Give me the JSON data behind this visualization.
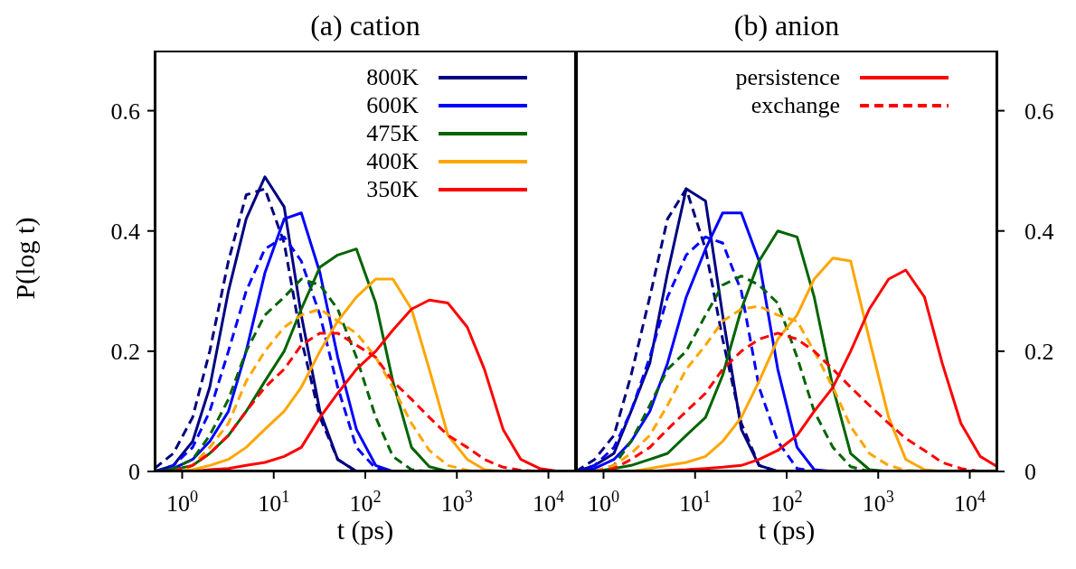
{
  "chart_data": [
    {
      "type": "line",
      "title": "(a) cation",
      "xlabel": "t (ps)",
      "ylabel": "P(log t)",
      "log": "x",
      "legend": "top right",
      "x": [
        0.5,
        0.8,
        1.3,
        2,
        3.2,
        5,
        8,
        13,
        20,
        32,
        50,
        80,
        130,
        200,
        320,
        500,
        800,
        1300,
        2000,
        3200,
        5000,
        8000,
        13000
      ],
      "xlim": [
        0.5,
        20000
      ],
      "xticks": [
        {
          "value": 1,
          "label": "10$^{0}$"
        },
        {
          "value": 10,
          "label": "10$^{1}$"
        },
        {
          "value": 100,
          "label": "10$^{2}$"
        },
        {
          "value": 1000,
          "label": "10$^{3}$"
        },
        {
          "value": 10000,
          "label": "10$^{4}$"
        }
      ],
      "ylim": [
        0,
        0.7
      ],
      "yticks": [
        0,
        0.2,
        0.4,
        0.6
      ],
      "series": [
        {
          "name": "800K",
          "color": "#000080",
          "line_style": "solid",
          "values": [
            0,
            0.01,
            0.05,
            0.14,
            0.3,
            0.42,
            0.49,
            0.44,
            0.26,
            0.1,
            0.02,
            0,
            null,
            null,
            null,
            null,
            null,
            null,
            null,
            null,
            null,
            null,
            null
          ]
        },
        {
          "color": "#000080",
          "line_style": "dashed",
          "values": [
            0.005,
            0.03,
            0.09,
            0.2,
            0.35,
            0.46,
            0.47,
            0.38,
            0.22,
            0.09,
            0.02,
            0,
            null,
            null,
            null,
            null,
            null,
            null,
            null,
            null,
            null,
            null,
            null
          ]
        },
        {
          "name": "600K",
          "color": "#0000ff",
          "line_style": "solid",
          "values": [
            0,
            0.005,
            0.02,
            0.05,
            0.1,
            0.2,
            0.33,
            0.42,
            0.43,
            0.33,
            0.19,
            0.07,
            0.01,
            0,
            null,
            null,
            null,
            null,
            null,
            null,
            null,
            null,
            null
          ]
        },
        {
          "color": "#0000ff",
          "line_style": "dashed",
          "values": [
            0,
            0.01,
            0.04,
            0.1,
            0.2,
            0.3,
            0.37,
            0.39,
            0.35,
            0.26,
            0.14,
            0.04,
            0.005,
            0,
            null,
            null,
            null,
            null,
            null,
            null,
            null,
            null,
            null
          ]
        },
        {
          "name": "475K",
          "color": "#006400",
          "line_style": "solid",
          "values": [
            0,
            0.003,
            0.01,
            0.03,
            0.06,
            0.1,
            0.15,
            0.2,
            0.27,
            0.34,
            0.36,
            0.37,
            0.28,
            0.15,
            0.04,
            0.008,
            0,
            null,
            null,
            null,
            null,
            null,
            null
          ]
        },
        {
          "color": "#006400",
          "line_style": "dashed",
          "values": [
            0,
            0.005,
            0.02,
            0.06,
            0.12,
            0.2,
            0.26,
            0.29,
            0.32,
            0.31,
            0.27,
            0.19,
            0.09,
            0.025,
            0.003,
            0,
            null,
            null,
            null,
            null,
            null,
            null,
            null
          ]
        },
        {
          "name": "400K",
          "color": "#ffa500",
          "line_style": "solid",
          "values": [
            null,
            0,
            0.003,
            0.01,
            0.02,
            0.04,
            0.07,
            0.1,
            0.14,
            0.2,
            0.25,
            0.29,
            0.32,
            0.32,
            0.27,
            0.17,
            0.06,
            0.02,
            0.003,
            0,
            null,
            null,
            null
          ]
        },
        {
          "color": "#ffa500",
          "line_style": "dashed",
          "values": [
            null,
            0,
            0.01,
            0.04,
            0.08,
            0.15,
            0.2,
            0.24,
            0.26,
            0.27,
            0.25,
            0.23,
            0.19,
            0.14,
            0.08,
            0.035,
            0.01,
            0.002,
            0,
            null,
            null,
            null,
            null
          ]
        },
        {
          "name": "350K",
          "color": "#ff0000",
          "line_style": "solid",
          "values": [
            null,
            null,
            0,
            0.003,
            0.005,
            0.01,
            0.015,
            0.025,
            0.04,
            0.09,
            0.13,
            0.17,
            0.2,
            0.235,
            0.27,
            0.285,
            0.28,
            0.24,
            0.17,
            0.07,
            0.02,
            0.005,
            0
          ]
        },
        {
          "color": "#ff0000",
          "line_style": "dashed",
          "values": [
            null,
            0,
            0.01,
            0.03,
            0.06,
            0.1,
            0.14,
            0.17,
            0.21,
            0.23,
            0.23,
            0.21,
            0.19,
            0.15,
            0.12,
            0.09,
            0.06,
            0.04,
            0.02,
            0.007,
            0.002,
            0,
            null
          ]
        }
      ]
    },
    {
      "type": "line",
      "title": "(b) anion",
      "xlabel": "t (ps)",
      "log": "x",
      "legend": "top right",
      "x": [
        0.5,
        0.8,
        1.3,
        2,
        3.2,
        5,
        8,
        13,
        20,
        32,
        50,
        80,
        130,
        200,
        320,
        500,
        800,
        1300,
        2000,
        3200,
        5000,
        8000,
        13000,
        20000
      ],
      "xlim": [
        0.5,
        20000
      ],
      "xticks": [
        {
          "value": 1,
          "label": "10$^{0}$"
        },
        {
          "value": 10,
          "label": "10$^{1}$"
        },
        {
          "value": 100,
          "label": "10$^{2}$"
        },
        {
          "value": 1000,
          "label": "10$^{3}$"
        },
        {
          "value": 10000,
          "label": "10$^{4}$"
        }
      ],
      "y2lim": [
        0,
        0.7
      ],
      "y2ticks": [
        0,
        0.2,
        0.4,
        0.6
      ],
      "series": [
        {
          "color": "#000080",
          "line_style": "solid",
          "axis": "y2",
          "values": [
            0,
            0.01,
            0.03,
            0.1,
            0.18,
            0.33,
            0.47,
            0.45,
            0.26,
            0.07,
            0.01,
            0,
            null,
            null,
            null,
            null,
            null,
            null,
            null,
            null,
            null,
            null,
            null,
            null
          ]
        },
        {
          "color": "#000080",
          "line_style": "dashed",
          "axis": "y2",
          "values": [
            0,
            0.02,
            0.06,
            0.16,
            0.29,
            0.42,
            0.47,
            0.37,
            0.22,
            0.08,
            0.01,
            0,
            null,
            null,
            null,
            null,
            null,
            null,
            null,
            null,
            null,
            null,
            null,
            null
          ]
        },
        {
          "color": "#0000ff",
          "line_style": "solid",
          "axis": "y2",
          "values": [
            0,
            0.005,
            0.02,
            0.05,
            0.1,
            0.18,
            0.29,
            0.37,
            0.43,
            0.43,
            0.35,
            0.17,
            0.04,
            0.003,
            0,
            null,
            null,
            null,
            null,
            null,
            null,
            null,
            null,
            null
          ]
        },
        {
          "color": "#0000ff",
          "line_style": "dashed",
          "axis": "y2",
          "values": [
            0,
            0.01,
            0.04,
            0.1,
            0.19,
            0.29,
            0.36,
            0.39,
            0.38,
            0.3,
            0.14,
            0.05,
            0.005,
            0,
            null,
            null,
            null,
            null,
            null,
            null,
            null,
            null,
            null,
            null
          ]
        },
        {
          "color": "#006400",
          "line_style": "solid",
          "axis": "y2",
          "values": [
            null,
            0,
            0.005,
            0.01,
            0.02,
            0.03,
            0.06,
            0.09,
            0.16,
            0.27,
            0.35,
            0.4,
            0.39,
            0.29,
            0.14,
            0.03,
            0.003,
            0,
            null,
            null,
            null,
            null,
            null,
            null
          ]
        },
        {
          "color": "#006400",
          "line_style": "dashed",
          "axis": "y2",
          "values": [
            null,
            0,
            0.01,
            0.05,
            0.11,
            0.17,
            0.2,
            0.26,
            0.31,
            0.325,
            0.31,
            0.28,
            0.19,
            0.1,
            0.04,
            0.008,
            0,
            null,
            null,
            null,
            null,
            null,
            null,
            null
          ]
        },
        {
          "color": "#ffa500",
          "line_style": "solid",
          "axis": "y2",
          "values": [
            null,
            null,
            null,
            0,
            0.005,
            0.01,
            0.015,
            0.025,
            0.05,
            0.09,
            0.15,
            0.22,
            0.26,
            0.32,
            0.355,
            0.35,
            0.22,
            0.09,
            0.02,
            0.003,
            0,
            null,
            null,
            null
          ]
        },
        {
          "color": "#ffa500",
          "line_style": "dashed",
          "axis": "y2",
          "values": [
            null,
            0,
            0.01,
            0.03,
            0.06,
            0.11,
            0.17,
            0.21,
            0.25,
            0.27,
            0.275,
            0.26,
            0.25,
            0.2,
            0.14,
            0.075,
            0.03,
            0.01,
            0.002,
            0,
            null,
            null,
            null,
            null
          ]
        },
        {
          "name": "persistence",
          "color": "#ff0000",
          "line_style": "solid",
          "axis": "y2",
          "values": [
            null,
            null,
            null,
            null,
            0,
            0.002,
            0.003,
            0.005,
            0.007,
            0.01,
            0.02,
            0.035,
            0.06,
            0.1,
            0.14,
            0.2,
            0.27,
            0.32,
            0.335,
            0.29,
            0.18,
            0.08,
            0.025,
            0.008
          ]
        },
        {
          "name": "exchange",
          "color": "#ff0000",
          "line_style": "dashed",
          "axis": "y2",
          "values": [
            null,
            0,
            0.005,
            0.02,
            0.04,
            0.07,
            0.1,
            0.13,
            0.17,
            0.2,
            0.22,
            0.23,
            0.22,
            0.2,
            0.17,
            0.14,
            0.11,
            0.08,
            0.055,
            0.035,
            0.015,
            0.005,
            0,
            null
          ]
        }
      ]
    }
  ]
}
